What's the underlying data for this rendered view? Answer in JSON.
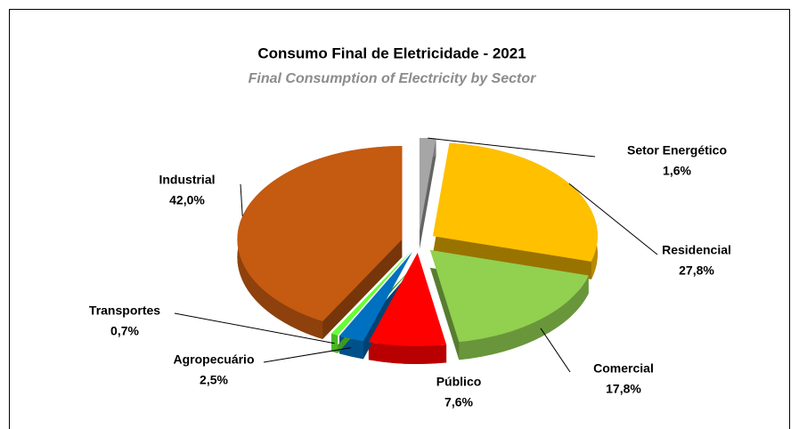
{
  "chart_data": {
    "type": "pie",
    "title": "Consumo Final de Eletricidade  - 2021",
    "subtitle": "Final Consumption of Electricity by Sector",
    "categories": [
      "Setor Energético",
      "Residencial",
      "Comercial",
      "Público",
      "Agropecuário",
      "Transportes",
      "Industrial"
    ],
    "values": [
      1.6,
      27.8,
      17.8,
      7.6,
      2.5,
      0.7,
      42.0
    ],
    "value_labels": [
      "1,6%",
      "27,8%",
      "17,8%",
      "7,6%",
      "2,5%",
      "0,7%",
      "42,0%"
    ],
    "colors": [
      "#a6a6a6",
      "#ffc000",
      "#92d050",
      "#ff0000",
      "#0070c0",
      "#66ff33",
      "#c55a11"
    ]
  }
}
